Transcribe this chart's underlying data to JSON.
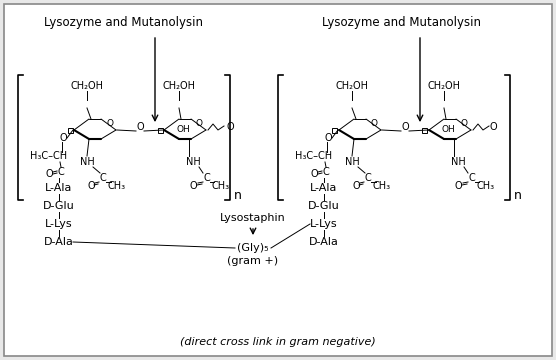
{
  "fig_width": 5.56,
  "fig_height": 3.6,
  "dpi": 100,
  "bg_color": "#e8e8e8",
  "inner_bg": "#ffffff",
  "labels": {
    "lysozyme_left": "Lysozyme and Mutanolysin",
    "lysozyme_right": "Lysozyme and Mutanolysin",
    "lysostaphin": "Lysostaphin",
    "gly5": "(Gly)₅",
    "gram_pos": "(gram +)",
    "direct_cross": "(direct cross link in gram negative)",
    "LAla_left": "L-Ala",
    "DGlu_left": "D-Glu",
    "LLys_left": "L-Lys",
    "DAla_left": "D-Ala",
    "LAla_right": "L-Ala",
    "DGlu_right": "D-Glu",
    "LLys_right": "L-Lys",
    "DAla_right": "D-Ala"
  }
}
